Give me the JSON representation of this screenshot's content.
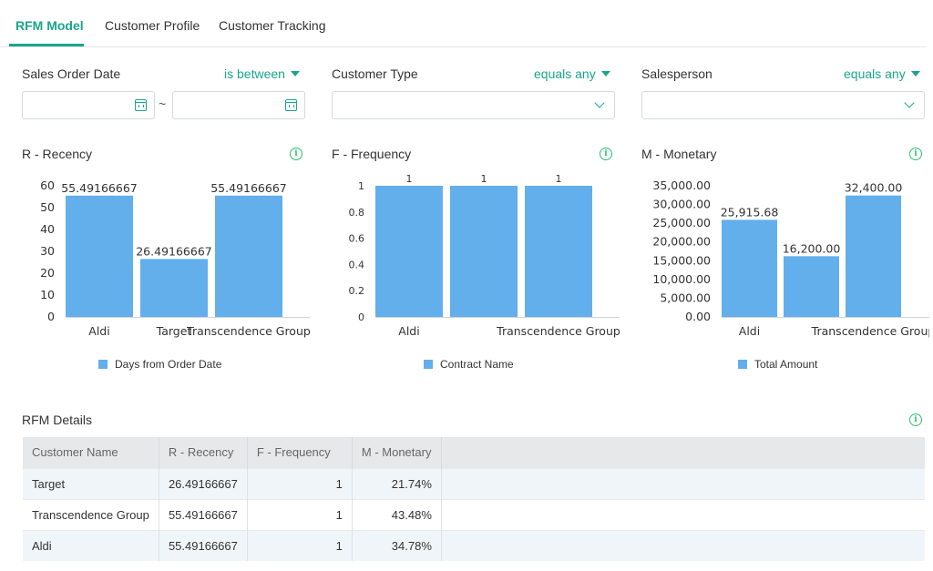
{
  "tabs": [
    {
      "label": "RFM Model",
      "active": true
    },
    {
      "label": "Customer Profile",
      "active": false
    },
    {
      "label": "Customer Tracking",
      "active": false
    }
  ],
  "filters": {
    "sales_order_date": {
      "label": "Sales Order Date",
      "operator": "is between",
      "separator": "~",
      "icon": "calendar-icon"
    },
    "customer_type": {
      "label": "Customer Type",
      "operator": "equals any",
      "icon": "chevron-down-icon"
    },
    "salesperson": {
      "label": "Salesperson",
      "operator": "equals any",
      "icon": "chevron-down-icon"
    }
  },
  "colors": {
    "accent": "#1aa58a",
    "bar": "#62afec",
    "info": "#2fbf71"
  },
  "panels": {
    "recency": {
      "title": "R - Recency",
      "legend": "Days from Order Date"
    },
    "frequency": {
      "title": "F - Frequency",
      "legend": "Contract Name"
    },
    "monetary": {
      "title": "M - Monetary",
      "legend": "Total Amount"
    }
  },
  "chart_data": [
    {
      "type": "bar",
      "title": "R - Recency",
      "categories": [
        "Aldi",
        "Target",
        "Transcendence Group"
      ],
      "series": [
        {
          "name": "Days from Order Date",
          "values": [
            55.49166667,
            26.49166667,
            55.49166667
          ]
        }
      ],
      "data_labels": [
        "55.49166667",
        "26.49166667",
        "55.49166667"
      ],
      "yticks": [
        "0",
        "10",
        "20",
        "30",
        "40",
        "50",
        "60"
      ],
      "ylim": [
        0,
        60
      ],
      "legend": "bottom"
    },
    {
      "type": "bar",
      "title": "F - Frequency",
      "categories": [
        "Aldi",
        "",
        "Transcendence Group"
      ],
      "series": [
        {
          "name": "Contract Name",
          "values": [
            1,
            1,
            1
          ]
        }
      ],
      "data_labels": [
        "1",
        "1",
        "1"
      ],
      "yticks": [
        "0",
        "0.2",
        "0.4",
        "0.6",
        "0.8",
        "1"
      ],
      "ylim": [
        0,
        1
      ],
      "legend": "bottom"
    },
    {
      "type": "bar",
      "title": "M - Monetary",
      "categories": [
        "Aldi",
        "",
        "Transcendence Group"
      ],
      "series": [
        {
          "name": "Total Amount",
          "values": [
            25915.68,
            16200.0,
            32400.0
          ]
        }
      ],
      "data_labels": [
        "25,915.68",
        "16,200.00",
        "32,400.00"
      ],
      "yticks": [
        "0.00",
        "5,000.00",
        "10,000.00",
        "15,000.00",
        "20,000.00",
        "25,000.00",
        "30,000.00",
        "35,000.00"
      ],
      "ylim": [
        0,
        35000
      ],
      "legend": "bottom"
    }
  ],
  "details": {
    "title": "RFM Details",
    "columns": [
      "Customer Name",
      "R - Recency",
      "F - Frequency",
      "M - Monetary"
    ],
    "rows": [
      [
        "Target",
        "26.49166667",
        "1",
        "21.74%"
      ],
      [
        "Transcendence Group",
        "55.49166667",
        "1",
        "43.48%"
      ],
      [
        "Aldi",
        "55.49166667",
        "1",
        "34.78%"
      ]
    ]
  }
}
